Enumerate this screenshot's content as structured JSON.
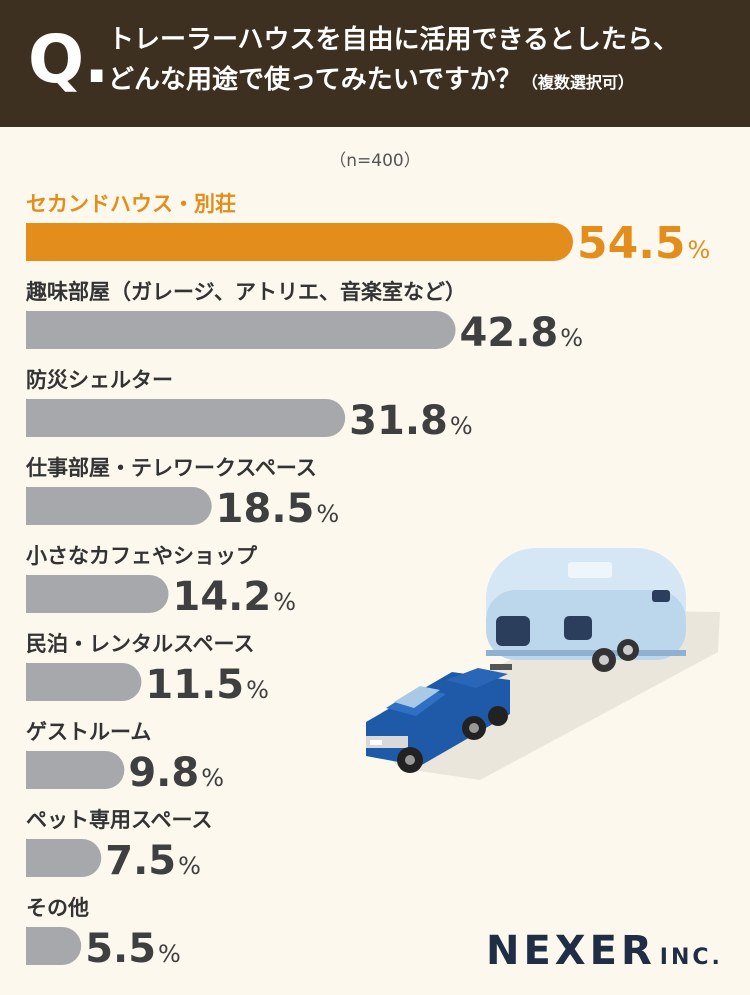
{
  "header": {
    "q_mark": "Q.",
    "question_line1": "トレーラーハウスを自由に活用できるとしたら、",
    "question_line2": "どんな用途で使ってみたいですか？",
    "question_note": "（複数選択可）"
  },
  "sample_size": "（n=400）",
  "logo": {
    "name": "NEXER",
    "suffix": "INC."
  },
  "colors": {
    "highlight": "#e38d1c",
    "bar": "#a7a8ab",
    "value_text": "#3f3f3f",
    "header_bg": "#3e3020"
  },
  "chart_data": {
    "type": "bar",
    "orientation": "horizontal",
    "unit": "%",
    "categories": [
      "セカンドハウス・別荘",
      "趣味部屋（ガレージ、アトリエ、音楽室など）",
      "防災シェルター",
      "仕事部屋・テレワークスペース",
      "小さなカフェやショップ",
      "民泊・レンタルスペース",
      "ゲストルーム",
      "ペット専用スペース",
      "その他"
    ],
    "values": [
      54.5,
      42.8,
      31.8,
      18.5,
      14.2,
      11.5,
      9.8,
      7.5,
      5.5
    ],
    "value_labels": [
      "54.5",
      "42.8",
      "31.8",
      "18.5",
      "14.2",
      "11.5",
      "9.8",
      "7.5",
      "5.5"
    ],
    "highlight_index": 0,
    "xlim": [
      0,
      100
    ]
  },
  "illustration": {
    "icons": [
      "pickup-truck-icon",
      "travel-trailer-icon"
    ]
  }
}
